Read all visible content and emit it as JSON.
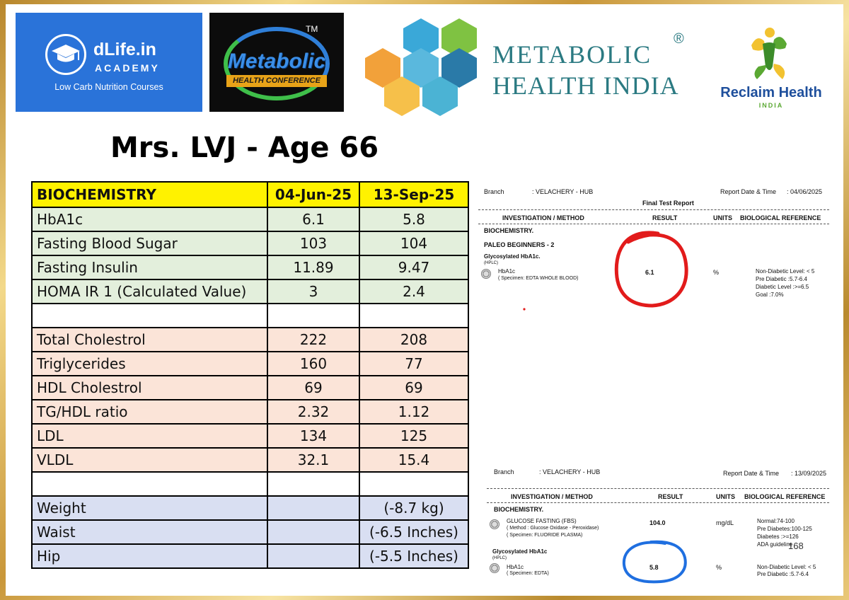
{
  "logos": {
    "dlife": {
      "name": "dLife.in",
      "academy": "ACADEMY",
      "tagline": "Low Carb Nutrition Courses"
    },
    "conference": {
      "title": "Metabolic",
      "subtitle": "HEALTH CONFERENCE",
      "tm": "TM"
    },
    "mhi": {
      "line1": "METABOLIC",
      "line2": "HEALTH INDIA",
      "reg": "®"
    },
    "reclaim": {
      "name": "Reclaim Health",
      "sub": "INDIA"
    }
  },
  "patient_title": "Mrs. LVJ - Age 66",
  "table": {
    "headers": [
      "BIOCHEMISTRY",
      "04-Jun-25",
      "13-Sep-25"
    ],
    "rows": [
      {
        "style": "green",
        "cells": [
          "HbA1c",
          "6.1",
          "5.8"
        ]
      },
      {
        "style": "green",
        "cells": [
          "Fasting Blood Sugar",
          "103",
          "104"
        ]
      },
      {
        "style": "green",
        "cells": [
          "Fasting Insulin",
          "11.89",
          "9.47"
        ]
      },
      {
        "style": "green",
        "cells": [
          "HOMA IR 1 (Calculated  Value)",
          "3",
          "2.4"
        ]
      },
      {
        "style": "blank",
        "cells": [
          "",
          "",
          ""
        ]
      },
      {
        "style": "pink",
        "cells": [
          "Total Cholestrol",
          "222",
          "208"
        ]
      },
      {
        "style": "pink",
        "cells": [
          "Triglycerides",
          "160",
          "77"
        ]
      },
      {
        "style": "pink",
        "cells": [
          "HDL Cholestrol",
          "69",
          "69"
        ]
      },
      {
        "style": "pink",
        "cells": [
          "TG/HDL ratio",
          "2.32",
          "1.12"
        ]
      },
      {
        "style": "pink",
        "cells": [
          "LDL",
          "134",
          "125"
        ]
      },
      {
        "style": "pink",
        "cells": [
          "VLDL",
          "32.1",
          "15.4"
        ]
      },
      {
        "style": "blank",
        "cells": [
          "",
          "",
          ""
        ]
      },
      {
        "style": "blue",
        "cells": [
          "Weight",
          "",
          "(-8.7 kg)"
        ]
      },
      {
        "style": "blue",
        "cells": [
          "Waist",
          "",
          "(-6.5 Inches)"
        ]
      },
      {
        "style": "blue",
        "cells": [
          "Hip",
          "",
          "(-5.5 Inches)"
        ]
      }
    ]
  },
  "report1": {
    "branch_label": "Branch",
    "branch_value": ": VELACHERY - HUB",
    "date_label": "Report Date & Time",
    "date_value": ": 04/06/2025",
    "final": "Final Test Report",
    "cols": [
      "INVESTIGATION / METHOD",
      "RESULT",
      "UNITS",
      "BIOLOGICAL REFERENCE"
    ],
    "section": "BIOCHEMISTRY.",
    "package": "PALEO BEGINNERS - 2",
    "test_group": "Glycosylated HbA1c.",
    "method": "(HPLC)",
    "test": "HbA1c",
    "specimen": "( Specimen: EDTA WHOLE BLOOD)",
    "result": "6.1",
    "unit": "%",
    "ref": [
      "Non-Diabetic Level: < 5",
      "Pre Diabetic        :5.7-6.4",
      "Diabetic Level     :>=6.5",
      "Goal                 :7.0%"
    ]
  },
  "report2": {
    "branch_label": "Branch",
    "branch_value": ": VELACHERY - HUB",
    "date_label": "Report Date & Time",
    "date_value": ": 13/09/2025",
    "cols": [
      "INVESTIGATION / METHOD",
      "RESULT",
      "UNITS",
      "BIOLOGICAL REFERENCE"
    ],
    "section": "BIOCHEMISTRY.",
    "test1": "GLUCOSE FASTING (FBS)",
    "test1_method": "( Method : Glucose Oxidase - Peroxidase)",
    "test1_specimen": "( Specimen: FLUORIDE PLASMA)",
    "test1_result": "104.0",
    "test1_unit": "mg/dL",
    "test1_ref": [
      "Normal:74-100",
      "Pre Diabetes:100-125",
      "Diabetes :>=126",
      "ADA guideline"
    ],
    "test_group": "Glycosylated HbA1c",
    "method": "(HPLC)",
    "test2": "HbA1c",
    "test2_specimen": "( Specimen: EDTA)",
    "test2_result": "5.8",
    "test2_unit": "%",
    "test2_ref": [
      "Non-Diabetic Level: < 5",
      "Pre Diabetic        :5.7-6.4"
    ]
  },
  "page_number": "168",
  "colors": {
    "table_header": "#fff200",
    "glucose_rows": "#e3efdc",
    "lipid_rows": "#fbe4d8",
    "body_rows": "#d9dff2",
    "circle1": "#e21b1b",
    "circle2": "#1f6fe0"
  }
}
